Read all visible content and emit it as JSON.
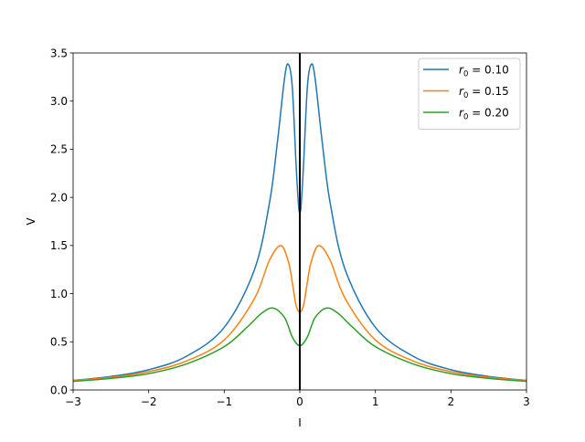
{
  "chart_data": {
    "type": "line",
    "title": "",
    "xlabel": "I",
    "ylabel": "V",
    "xlim": [
      -3,
      3
    ],
    "ylim": [
      0,
      3.5
    ],
    "xticks": [
      -3,
      -2,
      -1,
      0,
      1,
      2,
      3
    ],
    "xtick_labels": [
      "−3",
      "−2",
      "−1",
      "0",
      "1",
      "2",
      "3"
    ],
    "yticks": [
      0,
      0.5,
      1,
      1.5,
      2,
      2.5,
      3,
      3.5
    ],
    "ytick_labels": [
      "0.0",
      "0.5",
      "1.0",
      "1.5",
      "2.0",
      "2.5",
      "3.0",
      "3.5"
    ],
    "grid": false,
    "legend_position": "top-right",
    "vertical_line": {
      "x": 0,
      "color": "#000000"
    },
    "series": [
      {
        "name": "r0 = 0.10",
        "legend_prefix": "r",
        "legend_sub": "0",
        "legend_suffix": " = 0.10",
        "r0": 0.1,
        "color": "#1f77b4",
        "x": [
          -3,
          -2.5,
          -2,
          -1.5,
          -1,
          -0.6,
          -0.4,
          -0.3,
          -0.2,
          -0.15,
          -0.1,
          -0.05,
          -0.02,
          0,
          0.02,
          0.05,
          0.1,
          0.15,
          0.2,
          0.3,
          0.4,
          0.6,
          1,
          1.5,
          2,
          2.5,
          3
        ],
        "y": [
          0.1,
          0.14,
          0.21,
          0.35,
          0.65,
          1.25,
          1.95,
          2.55,
          3.25,
          3.38,
          3.15,
          2.35,
          1.95,
          1.83,
          1.95,
          2.35,
          3.15,
          3.38,
          3.25,
          2.55,
          1.95,
          1.25,
          0.65,
          0.35,
          0.21,
          0.14,
          0.1
        ]
      },
      {
        "name": "r0 = 0.15",
        "legend_prefix": "r",
        "legend_sub": "0",
        "legend_suffix": " = 0.15",
        "r0": 0.15,
        "color": "#ff7f0e",
        "x": [
          -3,
          -2.5,
          -2,
          -1.5,
          -1,
          -0.6,
          -0.4,
          -0.25,
          -0.15,
          -0.1,
          -0.05,
          0,
          0.05,
          0.1,
          0.15,
          0.25,
          0.4,
          0.6,
          1,
          1.5,
          2,
          2.5,
          3
        ],
        "y": [
          0.1,
          0.13,
          0.19,
          0.3,
          0.52,
          0.95,
          1.35,
          1.5,
          1.33,
          1.12,
          0.88,
          0.81,
          0.88,
          1.12,
          1.33,
          1.5,
          1.35,
          0.95,
          0.52,
          0.3,
          0.19,
          0.13,
          0.1
        ]
      },
      {
        "name": "r0 = 0.20",
        "legend_prefix": "r",
        "legend_sub": "0",
        "legend_suffix": " = 0.20",
        "r0": 0.2,
        "color": "#2ca02c",
        "x": [
          -3,
          -2.5,
          -2,
          -1.5,
          -1,
          -0.7,
          -0.5,
          -0.35,
          -0.2,
          -0.1,
          0,
          0.1,
          0.2,
          0.35,
          0.5,
          0.7,
          1,
          1.5,
          2,
          2.5,
          3
        ],
        "y": [
          0.09,
          0.12,
          0.17,
          0.27,
          0.45,
          0.65,
          0.8,
          0.85,
          0.75,
          0.55,
          0.46,
          0.55,
          0.75,
          0.85,
          0.8,
          0.65,
          0.45,
          0.27,
          0.17,
          0.12,
          0.09
        ]
      }
    ]
  }
}
